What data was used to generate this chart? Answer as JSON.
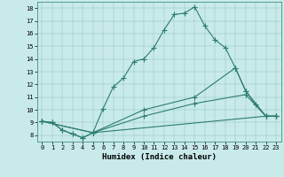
{
  "xlabel": "Humidex (Indice chaleur)",
  "background_color": "#c8eaea",
  "line_color": "#2e7d6e",
  "xlim": [
    -0.5,
    23.5
  ],
  "ylim": [
    7.5,
    18.5
  ],
  "xticks": [
    0,
    1,
    2,
    3,
    4,
    5,
    6,
    7,
    8,
    9,
    10,
    11,
    12,
    13,
    14,
    15,
    16,
    17,
    18,
    19,
    20,
    21,
    22,
    23
  ],
  "yticks": [
    8,
    9,
    10,
    11,
    12,
    13,
    14,
    15,
    16,
    17,
    18
  ],
  "lines": [
    {
      "x": [
        0,
        1,
        2,
        3,
        4,
        5,
        6,
        7,
        8,
        9,
        10,
        11,
        12,
        13,
        14,
        15,
        16,
        17,
        18,
        19,
        20,
        21,
        22,
        23
      ],
      "y": [
        9.1,
        9.0,
        8.4,
        8.1,
        7.8,
        8.2,
        10.1,
        11.8,
        12.5,
        13.8,
        14.0,
        14.9,
        16.3,
        17.5,
        17.6,
        18.1,
        16.6,
        15.5,
        14.9,
        13.3,
        11.5,
        10.4,
        9.5,
        9.5
      ]
    },
    {
      "x": [
        0,
        1,
        2,
        3,
        4,
        5,
        22,
        23
      ],
      "y": [
        9.1,
        9.0,
        8.4,
        8.1,
        7.8,
        8.2,
        9.5,
        9.5
      ]
    },
    {
      "x": [
        0,
        5,
        10,
        15,
        20,
        22,
        23
      ],
      "y": [
        9.1,
        8.2,
        9.5,
        10.5,
        11.2,
        9.5,
        9.5
      ]
    },
    {
      "x": [
        0,
        5,
        10,
        15,
        19,
        20,
        22,
        23
      ],
      "y": [
        9.1,
        8.2,
        10.0,
        11.0,
        13.3,
        11.5,
        9.5,
        9.5
      ]
    }
  ],
  "marker": "+",
  "markersize": 4,
  "linewidth": 0.8
}
